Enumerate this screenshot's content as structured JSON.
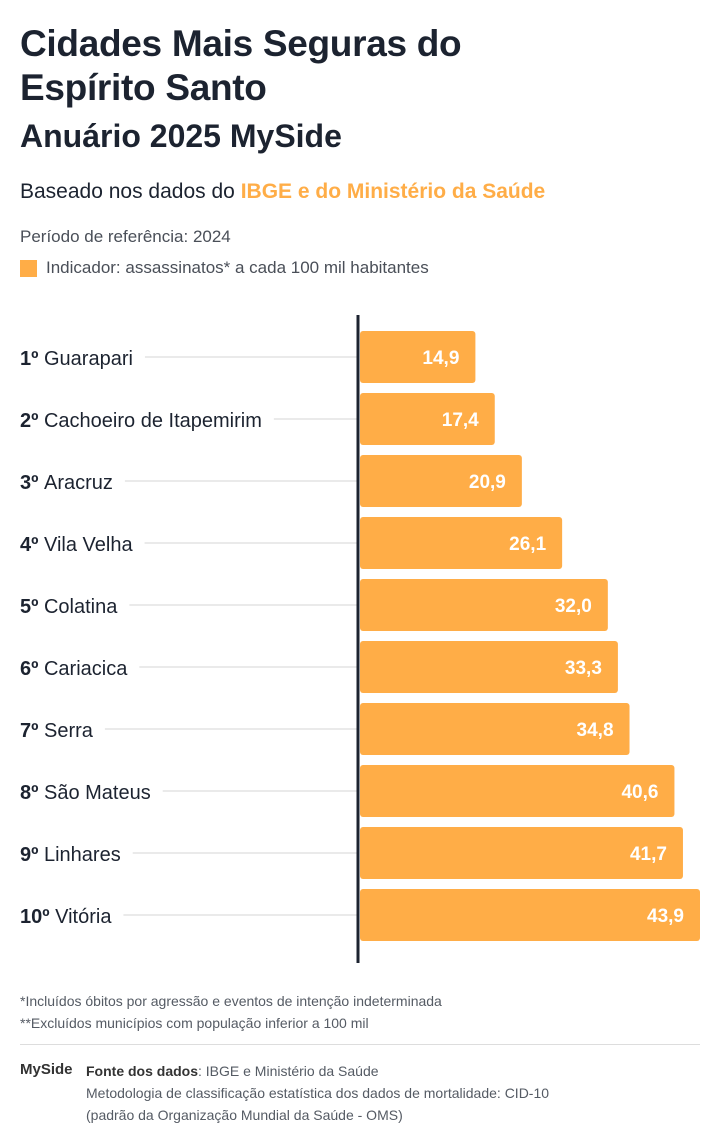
{
  "header": {
    "title": "Cidades Mais Seguras do Espírito Santo",
    "subtitle": "Anuário 2025 MySide",
    "based_on_prefix": "Baseado nos dados do ",
    "based_on_highlight": "IBGE e do Ministério da Saúde",
    "period": "Período de referência: 2024",
    "indicator": "Indicador: assassinatos* a cada 100 mil habitantes"
  },
  "colors": {
    "bar": "#ffad47",
    "text": "#1c2330",
    "axis": "#1c2330"
  },
  "chart_data": {
    "type": "bar",
    "orientation": "horizontal",
    "categories": [
      "1º|Guarapari",
      "2º|Cachoeiro de Itapemirim",
      "3º|Aracruz",
      "4º|Vila Velha",
      "5º|Colatina",
      "6º|Cariacica",
      "7º|Serra",
      "8º|São Mateus",
      "9º|Linhares",
      "10º|Vitória"
    ],
    "ranks": [
      "1º",
      "2º",
      "3º",
      "4º",
      "5º",
      "6º",
      "7º",
      "8º",
      "9º",
      "10º"
    ],
    "cities": [
      "Guarapari",
      "Cachoeiro de Itapemirim",
      "Aracruz",
      "Vila Velha",
      "Colatina",
      "Cariacica",
      "Serra",
      "São Mateus",
      "Linhares",
      "Vitória"
    ],
    "values": [
      14.9,
      17.4,
      20.9,
      26.1,
      32.0,
      33.3,
      34.8,
      40.6,
      41.7,
      43.9
    ],
    "value_labels": [
      "14,9",
      "17,4",
      "20,9",
      "26,1",
      "32,0",
      "33,3",
      "34,8",
      "40,6",
      "41,7",
      "43,9"
    ],
    "xlim": [
      0,
      43.9
    ],
    "grid": false
  },
  "notes": [
    "*Incluídos óbitos por agressão e eventos de intenção indeterminada",
    "**Excluídos municípios com população inferior a 100 mil"
  ],
  "footer": {
    "logo": "MySide",
    "source_label": "Fonte dos dados",
    "source_value": ": IBGE e Ministério da Saúde",
    "methodology_1": "Metodologia de classificação estatística dos dados de mortalidade: CID-10",
    "methodology_2": "(padrão da Organização Mundial da Saúde - OMS)"
  }
}
